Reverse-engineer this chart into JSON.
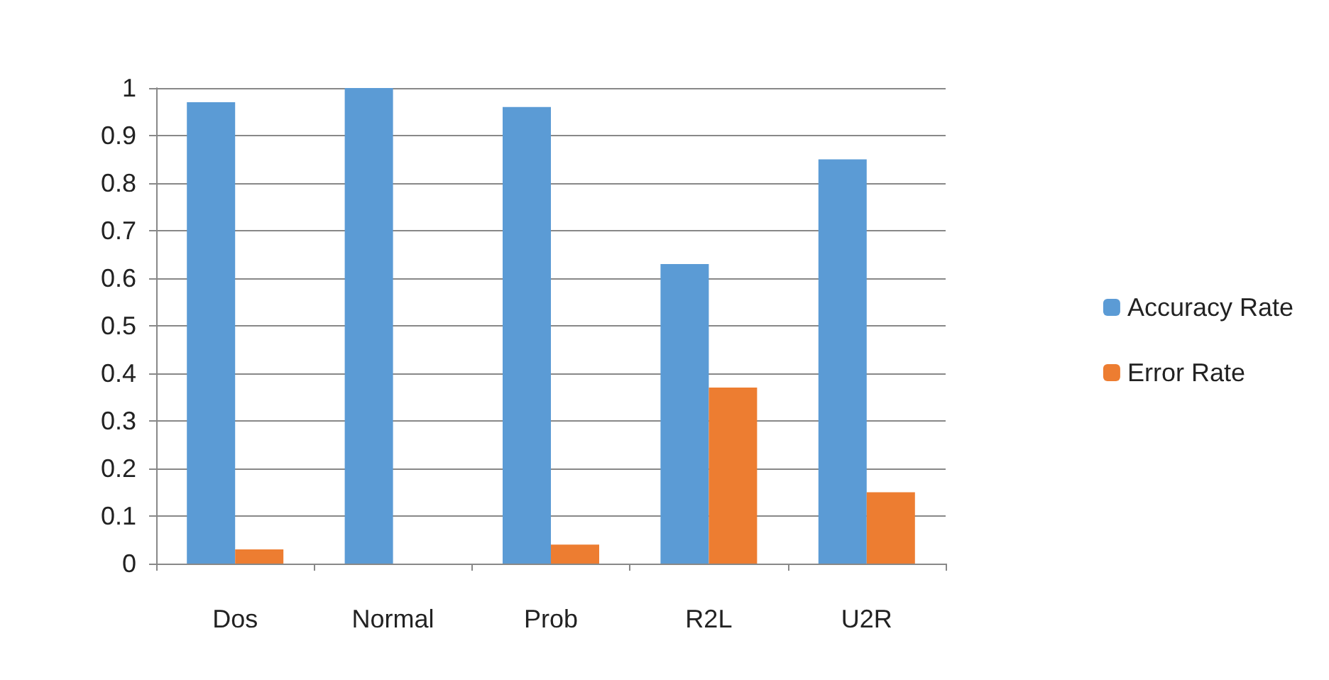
{
  "chart_data": {
    "type": "bar",
    "categories": [
      "Dos",
      "Normal",
      "Prob",
      "R2L",
      "U2R"
    ],
    "series": [
      {
        "name": "Accuracy Rate",
        "color": "#5b9bd5",
        "values": [
          0.97,
          1.0,
          0.96,
          0.63,
          0.85
        ]
      },
      {
        "name": "Error Rate",
        "color": "#ed7d31",
        "values": [
          0.03,
          0.0,
          0.04,
          0.37,
          0.15
        ]
      }
    ],
    "ylim": [
      0,
      1
    ],
    "yticks": [
      0,
      0.1,
      0.2,
      0.3,
      0.4,
      0.5,
      0.6,
      0.7,
      0.8,
      0.9,
      1
    ],
    "grid": "y",
    "legend": "right"
  }
}
